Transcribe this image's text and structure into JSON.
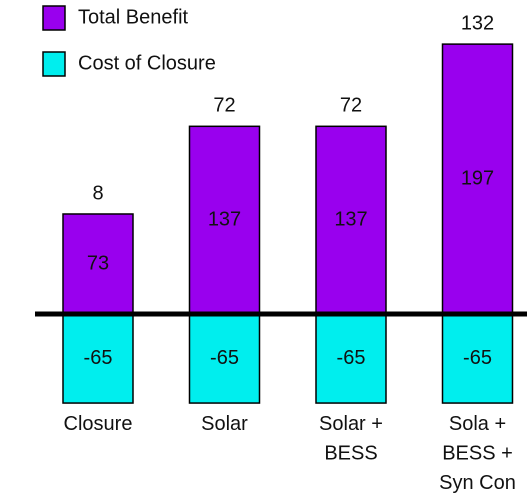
{
  "chart_data": {
    "type": "bar",
    "categories": [
      "Closure",
      "Solar",
      "Solar +\nBESS",
      "Sola +\nBESS +\nSyn Con"
    ],
    "series": [
      {
        "name": "Total Benefit",
        "color": "#9900ee",
        "values": [
          73,
          137,
          137,
          197
        ]
      },
      {
        "name": "Cost of Closure",
        "color": "#00eeee",
        "values": [
          -65,
          -65,
          -65,
          -65
        ]
      }
    ],
    "totals": [
      8,
      72,
      72,
      132
    ],
    "legend": "top-left"
  }
}
